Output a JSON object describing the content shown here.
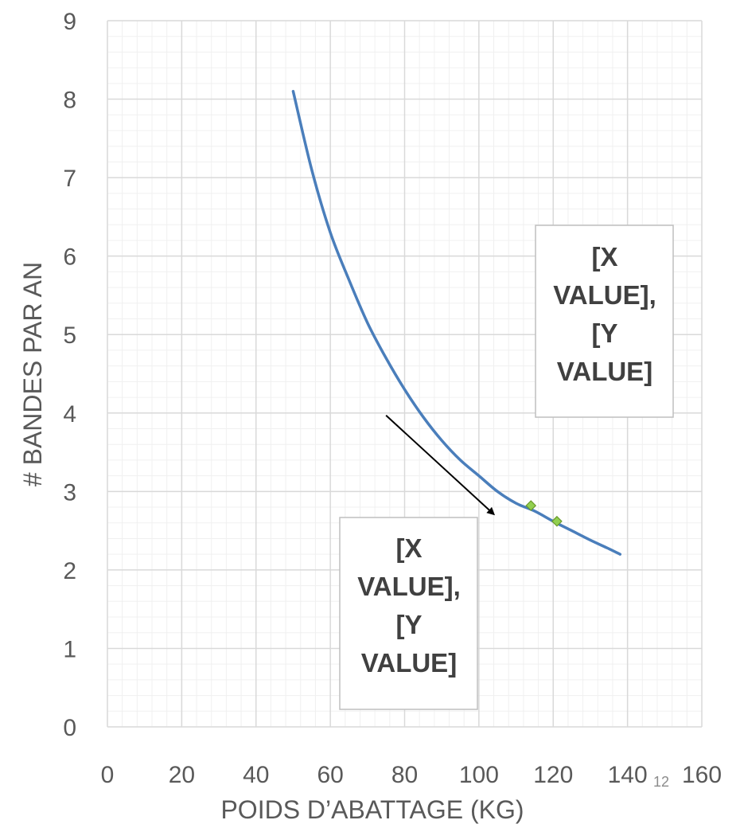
{
  "chart_data": {
    "type": "scatter",
    "xlabel": "POIDS D’ABATTAGE (KG)",
    "ylabel": "# BANDES PAR AN",
    "xlim": [
      0,
      160
    ],
    "ylim": [
      0,
      9
    ],
    "x_ticks": [
      "0",
      "20",
      "40",
      "60",
      "80",
      "100",
      "120",
      "140",
      "160"
    ],
    "y_ticks": [
      "0",
      "1",
      "2",
      "3",
      "4",
      "5",
      "6",
      "7",
      "8",
      "9"
    ],
    "grid": "major and minor",
    "series": [
      {
        "kind": "line",
        "color": "#4a7ebb",
        "x": [
          50,
          55,
          60,
          65,
          70,
          75,
          80,
          85,
          90,
          95,
          100,
          105,
          110,
          115,
          120,
          125,
          130,
          135,
          138
        ],
        "y": [
          8.1,
          7.1,
          6.3,
          5.7,
          5.15,
          4.7,
          4.3,
          3.95,
          3.65,
          3.4,
          3.2,
          3.0,
          2.85,
          2.75,
          2.62,
          2.5,
          2.38,
          2.27,
          2.2
        ]
      },
      {
        "kind": "markers",
        "color": "#92d050",
        "x": [
          114,
          121
        ],
        "y": [
          2.82,
          2.62
        ]
      }
    ],
    "annotations": [
      {
        "lines": [
          "[X",
          "VALUE],",
          "[Y",
          "VALUE]"
        ],
        "anchor": "upper-right"
      },
      {
        "lines": [
          "[X",
          "VALUE],",
          "[Y",
          "VALUE]"
        ],
        "anchor": "lower-middle"
      }
    ],
    "arrow": {
      "from": [
        75,
        3.97
      ],
      "to": [
        104,
        2.71
      ]
    }
  },
  "footer": {
    "slide_number": "12"
  }
}
